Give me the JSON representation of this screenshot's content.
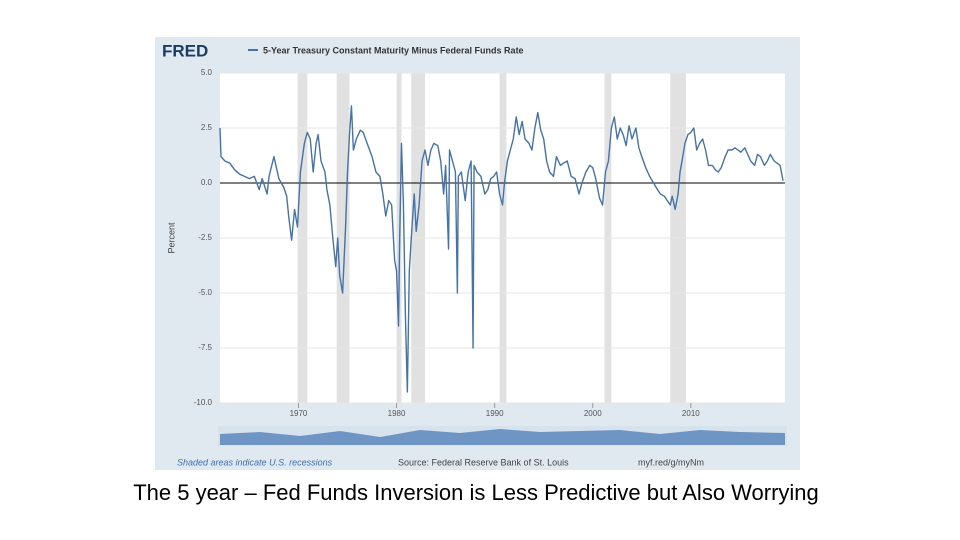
{
  "chart_data": {
    "type": "line",
    "logo": "FRED",
    "series": [
      {
        "name": "5-Year Treasury Constant Maturity Minus Federal Funds Rate",
        "color": "#4572a7",
        "x": [
          1962.0,
          1962.1,
          1962.5,
          1963,
          1963.5,
          1964,
          1964.5,
          1965,
          1965.5,
          1966,
          1966.3,
          1966.8,
          1967,
          1967.5,
          1967.8,
          1968,
          1968.5,
          1968.8,
          1969,
          1969.3,
          1969.6,
          1969.9,
          1970.2,
          1970.6,
          1970.9,
          1971.2,
          1971.5,
          1971.8,
          1972,
          1972.3,
          1972.7,
          1972.9,
          1973.2,
          1973.5,
          1973.8,
          1974.0,
          1974.2,
          1974.5,
          1974.8,
          1975.0,
          1975.2,
          1975.4,
          1975.6,
          1975.9,
          1976.3,
          1976.6,
          1977,
          1977.5,
          1977.9,
          1978.3,
          1978.6,
          1978.9,
          1979.2,
          1979.5,
          1979.8,
          1980.0,
          1980.2,
          1980.3,
          1980.5,
          1980.7,
          1980.9,
          1981.1,
          1981.3,
          1981.5,
          1981.8,
          1982.0,
          1982.3,
          1982.6,
          1982.9,
          1983.2,
          1983.5,
          1983.8,
          1984.2,
          1984.5,
          1984.8,
          1985,
          1985.3,
          1985.4,
          1985.7,
          1986,
          1986.2,
          1986.3,
          1986.6,
          1987,
          1987.3,
          1987.6,
          1987.8,
          1987.9,
          1988.2,
          1988.6,
          1989,
          1989.3,
          1989.6,
          1989.9,
          1990.2,
          1990.5,
          1990.8,
          1991,
          1991.3,
          1991.6,
          1991.9,
          1992.2,
          1992.5,
          1992.8,
          1993.1,
          1993.5,
          1993.8,
          1994.1,
          1994.4,
          1994.7,
          1995.0,
          1995.3,
          1995.6,
          1996,
          1996.3,
          1996.7,
          1997,
          1997.4,
          1997.8,
          1998.2,
          1998.6,
          1998.9,
          1999.3,
          1999.7,
          2000,
          2000.3,
          2000.7,
          2001,
          2001.3,
          2001.6,
          2001.9,
          2002.2,
          2002.5,
          2002.8,
          2003.1,
          2003.4,
          2003.7,
          2004.0,
          2004.4,
          2004.7,
          2005.0,
          2005.4,
          2005.8,
          2006.2,
          2006.6,
          2006.9,
          2007.3,
          2007.6,
          2007.9,
          2008.1,
          2008.4,
          2008.7,
          2008.9,
          2009.1,
          2009.4,
          2009.7,
          2010.0,
          2010.3,
          2010.6,
          2010.9,
          2011.2,
          2011.5,
          2011.8,
          2012.2,
          2012.5,
          2012.8,
          2013.1,
          2013.5,
          2013.8,
          2014.2,
          2014.5,
          2014.8,
          2015.1,
          2015.5,
          2015.8,
          2016.1,
          2016.5,
          2016.8,
          2017.1,
          2017.5,
          2017.8,
          2018.1,
          2018.5,
          2018.8,
          2019.1,
          2019.4
        ],
        "values": [
          2.5,
          1.2,
          1.0,
          0.9,
          0.6,
          0.4,
          0.3,
          0.2,
          0.3,
          -0.3,
          0.2,
          -0.5,
          0.3,
          1.2,
          0.6,
          0.2,
          -0.2,
          -0.6,
          -1.5,
          -2.6,
          -1.2,
          -2.0,
          0.5,
          1.8,
          2.3,
          2.0,
          0.5,
          1.8,
          2.2,
          1.0,
          0.5,
          -0.3,
          -1.0,
          -2.5,
          -3.8,
          -2.5,
          -4.2,
          -5.0,
          -2.0,
          0.5,
          2.2,
          3.5,
          1.5,
          2.0,
          2.4,
          2.3,
          1.8,
          1.2,
          0.5,
          0.3,
          -0.5,
          -1.5,
          -0.8,
          -1.0,
          -3.5,
          -4.0,
          -6.5,
          -3.0,
          1.8,
          -1.0,
          -6.0,
          -9.5,
          -4.0,
          -2.5,
          -0.5,
          -2.2,
          -1.0,
          1.0,
          1.5,
          0.8,
          1.5,
          1.8,
          1.7,
          1.0,
          -0.5,
          0.8,
          -3.0,
          1.5,
          1.0,
          0.5,
          -5.0,
          0.3,
          0.5,
          -0.8,
          0.5,
          1.0,
          -7.5,
          0.8,
          0.5,
          0.3,
          -0.5,
          -0.3,
          0.2,
          0.3,
          0.5,
          -0.5,
          -1.0,
          0.0,
          1.0,
          1.5,
          2.0,
          3.0,
          2.2,
          2.8,
          2.0,
          1.8,
          1.5,
          2.5,
          3.2,
          2.4,
          2.0,
          1.0,
          0.5,
          0.3,
          1.2,
          0.8,
          0.9,
          1.0,
          0.3,
          0.2,
          -0.5,
          0.0,
          0.5,
          0.8,
          0.7,
          0.2,
          -0.7,
          -1.0,
          0.5,
          1.0,
          2.5,
          3.0,
          2.0,
          2.5,
          2.2,
          1.7,
          2.6,
          2.0,
          2.5,
          1.6,
          1.2,
          0.7,
          0.3,
          0.0,
          -0.3,
          -0.5,
          -0.6,
          -0.8,
          -1.0,
          -0.6,
          -1.2,
          -0.5,
          0.5,
          1.0,
          1.8,
          2.2,
          2.3,
          2.5,
          1.5,
          1.8,
          2.0,
          1.5,
          0.8,
          0.8,
          0.6,
          0.5,
          0.7,
          1.2,
          1.5,
          1.5,
          1.6,
          1.5,
          1.4,
          1.6,
          1.3,
          1.0,
          0.8,
          1.3,
          1.2,
          0.8,
          1.0,
          1.3,
          1.0,
          0.9,
          0.8,
          0.1
        ]
      }
    ],
    "recessions": [
      [
        1969.9,
        1970.9
      ],
      [
        1973.9,
        1975.2
      ],
      [
        1980.0,
        1980.5
      ],
      [
        1981.5,
        1982.9
      ],
      [
        1990.5,
        1991.2
      ],
      [
        2001.2,
        2001.9
      ],
      [
        2007.9,
        2009.5
      ]
    ],
    "reference_line": 0,
    "ylabel": "Percent",
    "xlim": [
      1962,
      2019.6
    ],
    "xticks": [
      1970,
      1980,
      1990,
      2000,
      2010
    ],
    "ylim": [
      -10,
      5
    ],
    "yticks": [
      {
        "value": 5,
        "label": "5.0"
      },
      {
        "value": 2.5,
        "label": "2.5"
      },
      {
        "value": 0,
        "label": "0.0"
      },
      {
        "value": -2.5,
        "label": "-2.5"
      },
      {
        "value": -5,
        "label": "-5.0"
      },
      {
        "value": -7.5,
        "label": "-7.5"
      },
      {
        "value": -10,
        "label": "-10.0"
      }
    ],
    "grid": true,
    "note": "Shaded areas indicate U.S. recessions",
    "source": "Source: Federal Reserve Bank of St. Louis",
    "url": "myf.red/g/myNm"
  },
  "slide_caption": "The 5 year – Fed Funds Inversion is Less Predictive but Also Worrying"
}
